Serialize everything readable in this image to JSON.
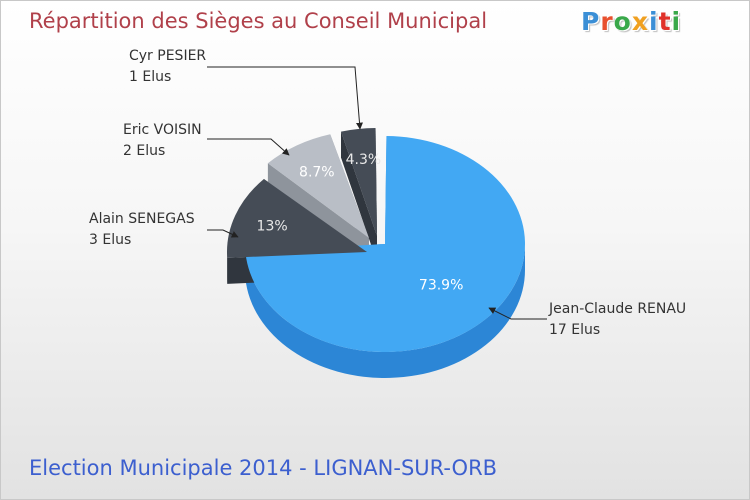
{
  "header": {
    "title": "Répartition des Sièges au Conseil Municipal"
  },
  "logo": {
    "text": "Proxiti",
    "colors": [
      "#3b8fd6",
      "#e8502e",
      "#39a84a",
      "#f0a020",
      "#3b8fd6",
      "#e0322a",
      "#39a84a"
    ]
  },
  "footer": {
    "text": "Election Municipale 2014 - LIGNAN-SUR-ORB"
  },
  "chart_data": {
    "type": "pie",
    "title": "Répartition des Sièges au Conseil Municipal",
    "slices": [
      {
        "name": "Jean-Claude RENAU",
        "seats_label": "17 Elus",
        "seats": 17,
        "percent": 73.9,
        "percent_label": "73.9%",
        "color": "#42a8f3",
        "side_color": "#2c86d6"
      },
      {
        "name": "Alain SENEGAS",
        "seats_label": "3 Elus",
        "seats": 3,
        "percent": 13.0,
        "percent_label": "13%",
        "color": "#454c56",
        "side_color": "#30363e"
      },
      {
        "name": "Eric VOISIN",
        "seats_label": "2 Elus",
        "seats": 2,
        "percent": 8.7,
        "percent_label": "8.7%",
        "color": "#b9bec6",
        "side_color": "#8e949c"
      },
      {
        "name": "Cyr PESIER",
        "seats_label": "1 Elus",
        "seats": 1,
        "percent": 4.3,
        "percent_label": "4.3%",
        "color": "#454c56",
        "side_color": "#30363e"
      }
    ]
  }
}
